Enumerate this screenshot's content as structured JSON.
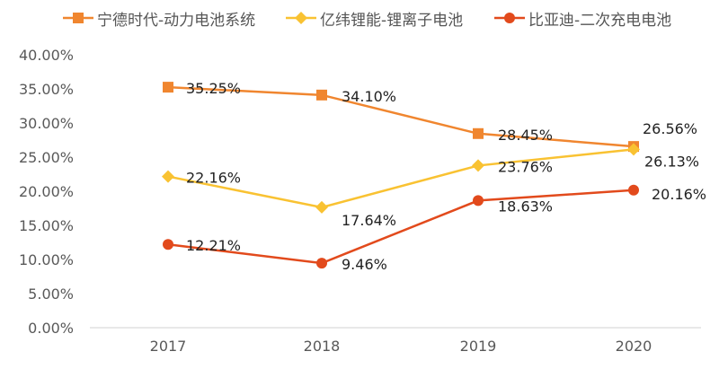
{
  "chart_data": {
    "type": "line",
    "title": "",
    "xlabel": "",
    "ylabel": "",
    "categories": [
      "2017",
      "2018",
      "2019",
      "2020"
    ],
    "ylim": [
      0,
      40
    ],
    "ytick_step": 5,
    "ytick_labels": [
      "0.00%",
      "5.00%",
      "10.00%",
      "15.00%",
      "20.00%",
      "25.00%",
      "30.00%",
      "35.00%",
      "40.00%"
    ],
    "grid": false,
    "legend_position": "top",
    "series": [
      {
        "name": "宁德时代-动力电池系统",
        "color": "#F0862F",
        "marker": "square",
        "values": [
          35.25,
          34.1,
          28.45,
          26.56
        ],
        "labels": [
          "35.25%",
          "34.10%",
          "28.45%",
          "26.56%"
        ]
      },
      {
        "name": "亿纬锂能-锂离子电池",
        "color": "#F9C232",
        "marker": "diamond",
        "values": [
          22.16,
          17.64,
          23.76,
          26.13
        ],
        "labels": [
          "22.16%",
          "17.64%",
          "23.76%",
          "26.13%"
        ]
      },
      {
        "name": "比亚迪-二次充电电池",
        "color": "#E24A1C",
        "marker": "circle",
        "values": [
          12.21,
          9.46,
          18.63,
          20.16
        ],
        "labels": [
          "12.21%",
          "9.46%",
          "18.63%",
          "20.16%"
        ]
      }
    ]
  }
}
